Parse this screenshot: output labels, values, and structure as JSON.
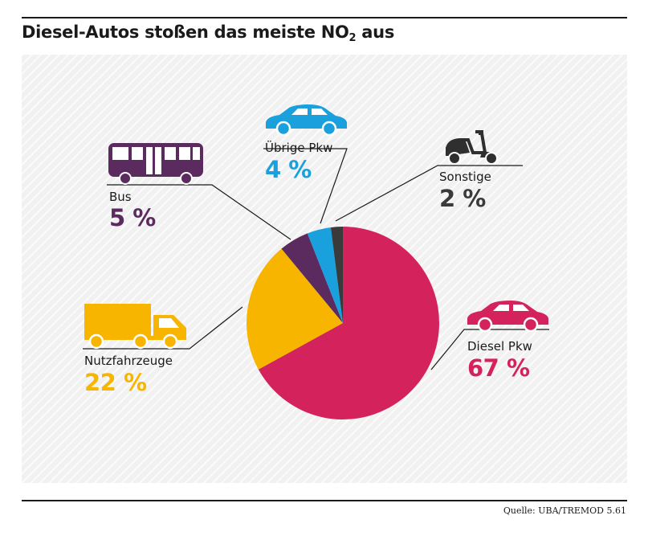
{
  "title_main": "Diesel-Autos stoßen das meiste NO",
  "title_sub": "2",
  "title_end": " aus",
  "source": "Quelle: UBA/TREMOD 5.61",
  "chart_data": {
    "type": "pie",
    "title": "Diesel-Autos stoßen das meiste NO2 aus",
    "unit": "%",
    "slices": [
      {
        "key": "diesel",
        "label": "Diesel Pkw",
        "value": 67,
        "value_text": "67 %",
        "color": "#d4235c",
        "icon": "car-icon"
      },
      {
        "key": "nutz",
        "label": "Nutzfahrzeuge",
        "value": 22,
        "value_text": "22 %",
        "color": "#f7b500",
        "icon": "truck-icon"
      },
      {
        "key": "bus",
        "label": "Bus",
        "value": 5,
        "value_text": "5 %",
        "color": "#5b2a5e",
        "icon": "bus-icon"
      },
      {
        "key": "pkw",
        "label": "Übrige Pkw",
        "value": 4,
        "value_text": "4 %",
        "color": "#1aa0dc",
        "icon": "car-icon"
      },
      {
        "key": "sonst",
        "label": "Sonstige",
        "value": 2,
        "value_text": "2 %",
        "color": "#3a3a3a",
        "icon": "scooter-icon"
      }
    ]
  }
}
